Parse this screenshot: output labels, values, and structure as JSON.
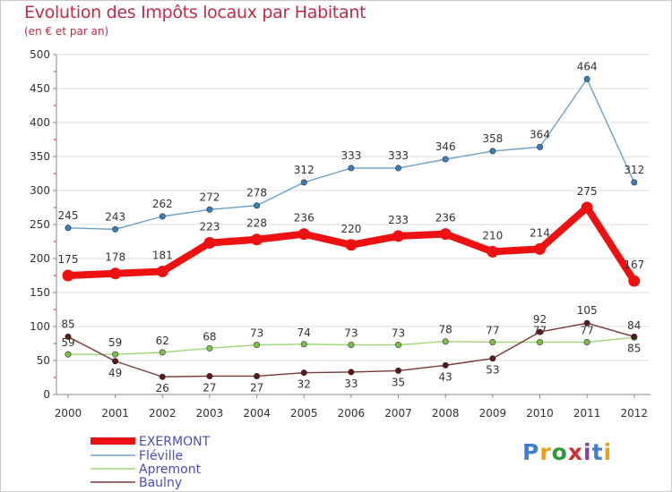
{
  "title": "Evolution des Impôts locaux par Habitant",
  "subtitle": "(en € et par an)",
  "logo": {
    "text": "Proxiti",
    "colors": [
      "#3f7fd0",
      "#e8a020",
      "#2a9a3a",
      "#d03030",
      "#8a3fb0",
      "#3f7fd0",
      "#e8a020"
    ]
  },
  "chart_data": {
    "type": "line",
    "title": "Evolution des Impôts locaux par Habitant",
    "subtitle": "(en € et par an)",
    "xlabel": "",
    "ylabel": "",
    "ylim": [
      0,
      500
    ],
    "yticks": [
      0,
      50,
      100,
      150,
      200,
      250,
      300,
      350,
      400,
      450,
      500
    ],
    "grid": "horizontal",
    "legend_position": "bottom-left",
    "categories": [
      "2000",
      "2001",
      "2002",
      "2003",
      "2004",
      "2005",
      "2006",
      "2007",
      "2008",
      "2009",
      "2010",
      "2011",
      "2012"
    ],
    "series": [
      {
        "name": "Fléville",
        "color": "#6a9fcc",
        "marker": "#3a7cc0",
        "values": [
          245,
          243,
          262,
          272,
          278,
          312,
          333,
          333,
          346,
          358,
          364,
          464,
          312
        ]
      },
      {
        "name": "Apremont",
        "color": "#9fd87a",
        "marker": "#7cc04a",
        "values": [
          59,
          59,
          62,
          68,
          73,
          74,
          73,
          73,
          78,
          77,
          77,
          77,
          84
        ]
      },
      {
        "name": "Baulny",
        "color": "#7a3838",
        "marker": "#5a1a1a",
        "values": [
          85,
          49,
          26,
          27,
          27,
          32,
          33,
          35,
          43,
          53,
          92,
          105,
          85
        ]
      },
      {
        "name": "EXERMONT",
        "color": "#ee1111",
        "marker": "#ee1111",
        "values": [
          175,
          178,
          181,
          223,
          228,
          236,
          220,
          233,
          236,
          210,
          214,
          275,
          167
        ]
      }
    ],
    "legend_order": [
      "EXERMONT",
      "Fléville",
      "Apremont",
      "Baulny"
    ]
  }
}
